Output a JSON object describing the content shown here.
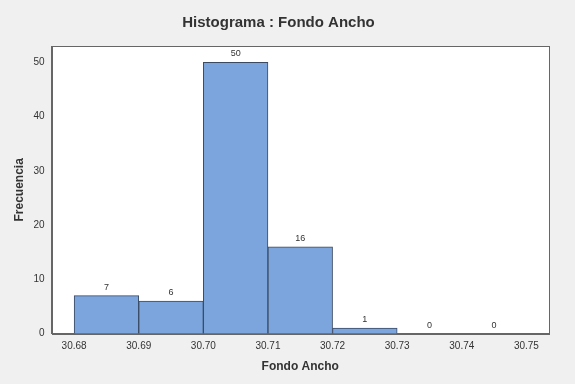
{
  "chart_data": {
    "type": "histogram",
    "title": "Histograma : Fondo Ancho",
    "x_label": "Fondo Ancho",
    "y_label": "Frecuencia",
    "bins": [
      30.68,
      30.69,
      30.7,
      30.71,
      30.72,
      30.73,
      30.74,
      30.75
    ],
    "values": [
      7,
      6,
      50,
      16,
      1,
      0,
      0
    ],
    "color": "#7ba5dc",
    "xlim": [
      30.6765,
      30.7535
    ],
    "xticks": [
      30.68,
      30.69,
      {
        "value": 30.7,
        "label": "30.70"
      },
      30.71,
      30.72,
      30.73,
      30.74,
      30.75
    ],
    "ylim": [
      0,
      53
    ],
    "yticks": [
      0,
      10,
      20,
      30,
      40,
      50
    ],
    "grid": false,
    "data_labels": true
  }
}
